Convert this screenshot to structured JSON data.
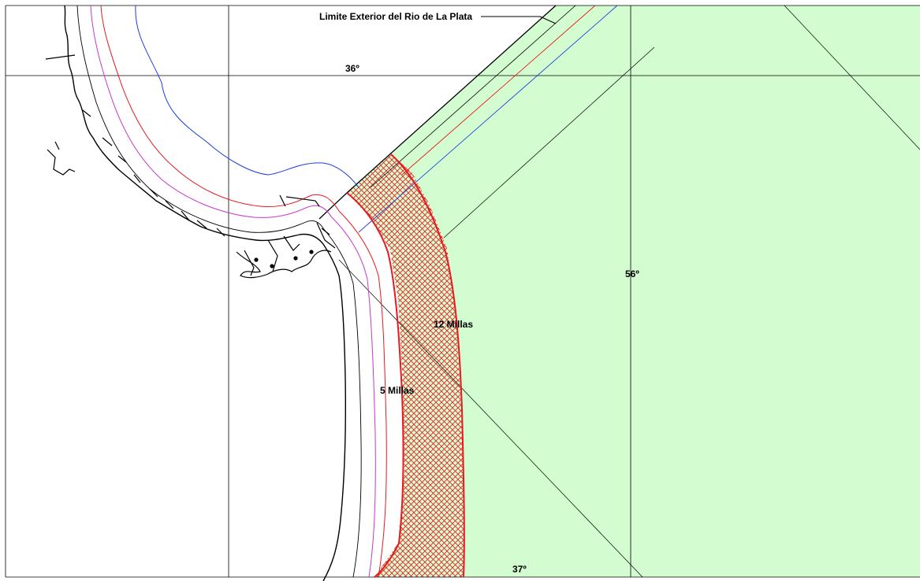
{
  "map": {
    "labels": {
      "outer_limit": "Limite Exterior del Rio de La Plata",
      "lat_36": "36º",
      "lat_37": "37º",
      "lon_56": "56º",
      "zone_12": "12 Millas",
      "zone_5": "5 Millas"
    },
    "colors": {
      "sea_zone_fill": "#d3fdd0",
      "hatch": "#e8191f",
      "twelve_mile_boundary": "#e8191f",
      "isobath_blue": "#1b3fd8",
      "isobath_red": "#e8191f",
      "isobath_magenta": "#c837c8",
      "coastline": "#000000",
      "grid": "#000000"
    }
  }
}
